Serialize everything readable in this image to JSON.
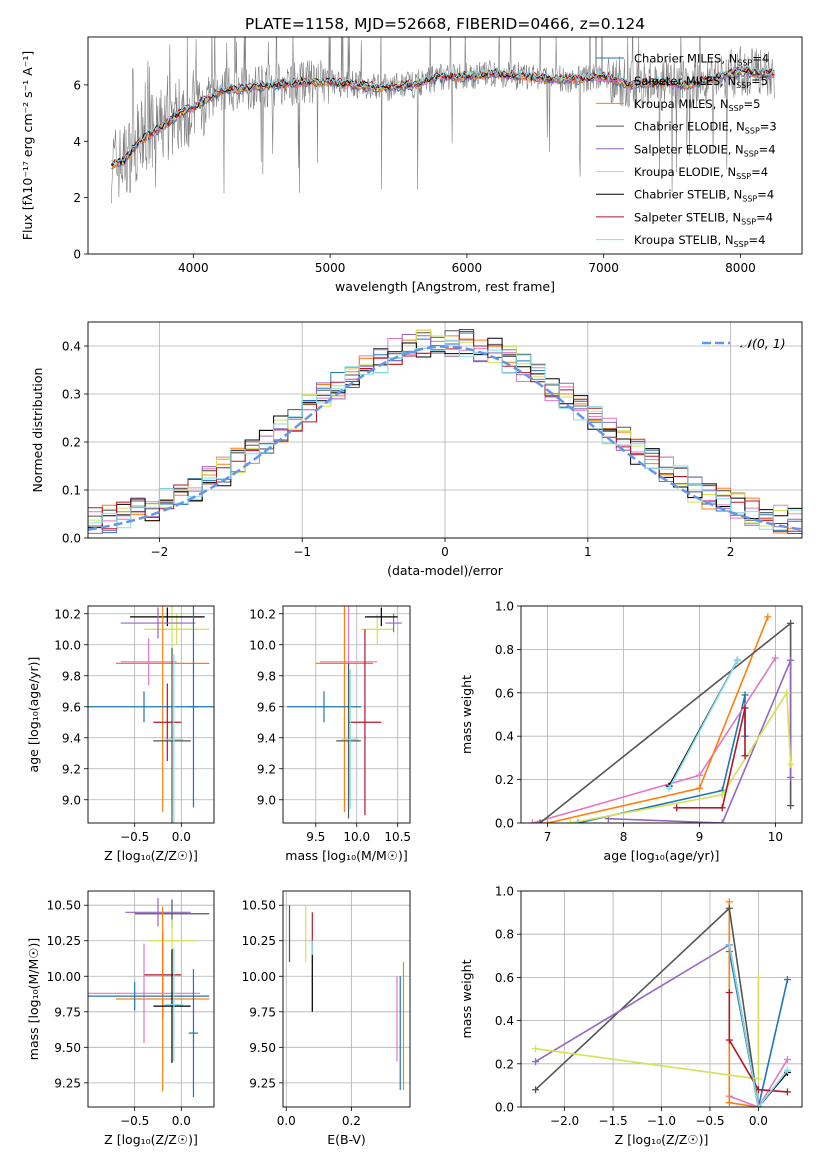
{
  "figure_title": "PLATE=1158, MJD=52668, FIBERID=0466, z=0.124",
  "colors": {
    "data": "#808080",
    "Chabrier MILES": "#1f77b4",
    "Salpeter MILES": "#e377c2",
    "Kroupa MILES": "#ff7f0e",
    "Chabrier ELODIE": "#555555",
    "Salpeter ELODIE": "#9467bd",
    "Kroupa ELODIE": "#d4e157",
    "Chabrier STELIB": "#000000",
    "Salpeter STELIB": "#b2182b",
    "Kroupa STELIB": "#80deea",
    "normal": "#6495ed"
  },
  "chart_data": [
    {
      "id": "spectrum",
      "type": "line",
      "xlabel": "wavelength [Angstrom, rest frame]",
      "ylabel": "Flux [fλ10⁻¹⁷ erg cm⁻² s⁻¹ A⁻¹]",
      "xlim": [
        3230,
        8450
      ],
      "ylim": [
        0,
        7.7
      ],
      "xticks": [
        4000,
        5000,
        6000,
        7000,
        8000
      ],
      "yticks": [
        0,
        2,
        4,
        6
      ],
      "grid": false,
      "legend_position": "right",
      "legend": [
        {
          "label": "Chabrier MILES, N",
          "sub": "SSP",
          "tail": "=4"
        },
        {
          "label": "Salpeter MILES, N",
          "sub": "SSP",
          "tail": "=5"
        },
        {
          "label": "Kroupa MILES, N",
          "sub": "SSP",
          "tail": "=5"
        },
        {
          "label": "Chabrier ELODIE, N",
          "sub": "SSP",
          "tail": "=3"
        },
        {
          "label": "Salpeter ELODIE, N",
          "sub": "SSP",
          "tail": "=4"
        },
        {
          "label": "Kroupa ELODIE, N",
          "sub": "SSP",
          "tail": "=4"
        },
        {
          "label": "Chabrier STELIB, N",
          "sub": "SSP",
          "tail": "=4"
        },
        {
          "label": "Salpeter STELIB, N",
          "sub": "SSP",
          "tail": "=4"
        },
        {
          "label": "Kroupa STELIB, N",
          "sub": "SSP",
          "tail": "=4"
        }
      ],
      "model_continuum": {
        "x": [
          3400,
          3500,
          3600,
          3700,
          3800,
          3900,
          4000,
          4100,
          4200,
          4400,
          4600,
          4800,
          5000,
          5200,
          5400,
          5600,
          5800,
          6000,
          6200,
          6400,
          6600,
          6800,
          7000,
          7200,
          7400,
          7600,
          7800,
          8000,
          8200
        ],
        "y": [
          3.2,
          3.3,
          4.0,
          4.3,
          4.6,
          5.0,
          5.2,
          5.5,
          5.8,
          5.9,
          6.0,
          6.1,
          6.1,
          6.0,
          5.9,
          6.0,
          6.3,
          6.3,
          6.4,
          6.3,
          6.2,
          6.2,
          6.3,
          6.0,
          6.1,
          6.0,
          6.2,
          6.5,
          6.4
        ]
      }
    },
    {
      "id": "residuals",
      "type": "histogram",
      "xlabel": "(data-model)/error",
      "ylabel": "Normed distribution",
      "xlim": [
        -2.5,
        2.5
      ],
      "ylim": [
        0,
        0.45
      ],
      "xticks": [
        -2,
        -1,
        0,
        1,
        2
      ],
      "yticks": [
        0.0,
        0.1,
        0.2,
        0.3,
        0.4
      ],
      "grid": true,
      "legend_position": "top-right",
      "legend": "𝒩(0, 1)",
      "bin_width": 0.1,
      "reference_curve": "standard normal density"
    },
    {
      "id": "age_vs_Z",
      "type": "scatter",
      "xlabel": "Z [log₁₀(Z/Z☉)]",
      "ylabel": "age  [log₁₀(age/yr)]",
      "xlim": [
        -1.0,
        0.35
      ],
      "ylim": [
        8.85,
        10.25
      ],
      "xticks": [
        -0.5,
        0.0
      ],
      "yticks": [
        9.0,
        9.2,
        9.4,
        9.6,
        9.8,
        10.0,
        10.2
      ],
      "grid": true,
      "points": [
        {
          "series": "Kroupa ELODIE",
          "x": -0.05,
          "y": 10.1,
          "xerr": 0.35,
          "yerr": 0.1
        },
        {
          "series": "Kroupa ELODIE",
          "x": -0.1,
          "y": 10.1,
          "xerr": 0.2,
          "yerr": 0.15
        },
        {
          "series": "Chabrier STELIB",
          "x": -0.15,
          "y": 10.18,
          "xerr": 0.4,
          "yerr": 0.06
        },
        {
          "series": "Salpeter ELODIE",
          "x": -0.25,
          "y": 10.14,
          "xerr": 0.4,
          "yerr": 0.1
        },
        {
          "series": "Kroupa MILES",
          "x": -0.2,
          "y": 9.88,
          "xerr": 0.5,
          "yerr": 0.96
        },
        {
          "series": "Salpeter MILES",
          "x": -0.35,
          "y": 9.89,
          "xerr": 0.3,
          "yerr": 0.15
        },
        {
          "series": "Chabrier MILES",
          "x": -0.4,
          "y": 9.6,
          "xerr": 0.8,
          "yerr": 0.1
        },
        {
          "series": "Chabrier MILES",
          "x": 0.13,
          "y": 9.6,
          "xerr": 0.05,
          "yerr": 0.65
        },
        {
          "series": "Salpeter STELIB",
          "x": -0.15,
          "y": 9.5,
          "xerr": 0.15,
          "yerr": 0.25
        },
        {
          "series": "Chabrier ELODIE",
          "x": -0.1,
          "y": 9.38,
          "xerr": 0.2,
          "yerr": 0.6
        },
        {
          "series": "Kroupa STELIB",
          "x": -0.08,
          "y": 9.39,
          "xerr": 0.1,
          "yerr": 0.55
        }
      ]
    },
    {
      "id": "age_vs_mass",
      "type": "scatter",
      "xlabel": "mass [log₁₀(M/M☉)]",
      "ylabel": "",
      "xlim": [
        9.1,
        10.65
      ],
      "ylim": [
        8.85,
        10.25
      ],
      "xticks": [
        9.5,
        10.0,
        10.5
      ],
      "yticks": [
        9.0,
        9.2,
        9.4,
        9.6,
        9.8,
        10.0,
        10.2
      ],
      "grid": true,
      "points": [
        {
          "series": "Kroupa ELODIE",
          "x": 10.25,
          "y": 10.1,
          "xerr": 0.2,
          "yerr": 0.1
        },
        {
          "series": "Salpeter ELODIE",
          "x": 10.45,
          "y": 10.14,
          "xerr": 0.1,
          "yerr": 0.06
        },
        {
          "series": "Chabrier STELIB",
          "x": 10.3,
          "y": 10.18,
          "xerr": 0.2,
          "yerr": 0.06
        },
        {
          "series": "Kroupa MILES",
          "x": 9.85,
          "y": 9.88,
          "xerr": 0.35,
          "yerr": 0.96
        },
        {
          "series": "Salpeter MILES",
          "x": 9.9,
          "y": 9.89,
          "xerr": 0.35,
          "yerr": 0.9
        },
        {
          "series": "Chabrier MILES",
          "x": 9.6,
          "y": 9.6,
          "xerr": 0.45,
          "yerr": 0.1
        },
        {
          "series": "Salpeter STELIB",
          "x": 10.1,
          "y": 9.5,
          "xerr": 0.2,
          "yerr": 0.6
        },
        {
          "series": "Chabrier ELODIE",
          "x": 9.9,
          "y": 9.38,
          "xerr": 0.15,
          "yerr": 0.5
        },
        {
          "series": "Kroupa STELIB",
          "x": 9.92,
          "y": 9.39,
          "xerr": 0.1,
          "yerr": 0.45
        }
      ]
    },
    {
      "id": "weight_vs_age",
      "type": "line",
      "xlabel": "age  [log₁₀(age/yr)]",
      "ylabel": "mass weight",
      "xlim": [
        6.65,
        10.35
      ],
      "ylim": [
        0,
        1.0
      ],
      "xticks": [
        7,
        8,
        9,
        10
      ],
      "yticks": [
        0.0,
        0.2,
        0.4,
        0.6,
        0.8,
        1.0
      ],
      "grid": true,
      "series": [
        {
          "key": "Chabrier MILES",
          "x": [
            7.4,
            9.3,
            9.6,
            9.6
          ],
          "y": [
            0.0,
            0.15,
            0.59,
            0.4
          ]
        },
        {
          "key": "Salpeter MILES",
          "x": [
            6.8,
            9.0,
            10.0
          ],
          "y": [
            0.0,
            0.22,
            0.76
          ]
        },
        {
          "key": "Kroupa MILES",
          "x": [
            7.0,
            9.0,
            9.9
          ],
          "y": [
            0.0,
            0.16,
            0.95
          ]
        },
        {
          "key": "Chabrier ELODIE",
          "x": [
            6.9,
            10.2,
            10.2
          ],
          "y": [
            0.0,
            0.92,
            0.08
          ]
        },
        {
          "key": "Salpeter ELODIE",
          "x": [
            7.8,
            9.3,
            10.2,
            10.2
          ],
          "y": [
            0.02,
            0.0,
            0.75,
            0.21
          ]
        },
        {
          "key": "Kroupa ELODIE",
          "x": [
            7.3,
            9.3,
            10.15,
            10.2
          ],
          "y": [
            0.0,
            0.13,
            0.6,
            0.27
          ]
        },
        {
          "key": "Chabrier STELIB",
          "x": [
            8.6,
            9.5
          ],
          "y": [
            0.17,
            0.75
          ]
        },
        {
          "key": "Salpeter STELIB",
          "x": [
            8.7,
            9.3,
            9.6,
            9.6
          ],
          "y": [
            0.07,
            0.07,
            0.53,
            0.31
          ]
        },
        {
          "key": "Kroupa STELIB",
          "x": [
            8.6,
            9.5
          ],
          "y": [
            0.16,
            0.75
          ]
        }
      ]
    },
    {
      "id": "mass_vs_Z",
      "type": "scatter",
      "xlabel": "Z [log₁₀(Z/Z☉)]",
      "ylabel": "mass [log₁₀(M/M☉)]",
      "xlim": [
        -1.0,
        0.35
      ],
      "ylim": [
        9.08,
        10.6
      ],
      "xticks": [
        -0.5,
        0.0
      ],
      "yticks": [
        9.25,
        9.5,
        9.75,
        10.0,
        10.25,
        10.5
      ],
      "grid": true,
      "points": [
        {
          "series": "Chabrier ELODIE",
          "x": -0.1,
          "y": 10.44,
          "xerr": 0.4,
          "yerr": 0.1
        },
        {
          "series": "Salpeter ELODIE",
          "x": -0.25,
          "y": 10.45,
          "xerr": 0.35,
          "yerr": 0.1
        },
        {
          "series": "Kroupa ELODIE",
          "x": -0.1,
          "y": 10.25,
          "xerr": 0.25,
          "yerr": 0.15
        },
        {
          "series": "Salpeter STELIB",
          "x": -0.2,
          "y": 10.01,
          "xerr": 0.2,
          "yerr": 0.3
        },
        {
          "series": "Kroupa MILES",
          "x": -0.2,
          "y": 9.84,
          "xerr": 0.5,
          "yerr": 0.65
        },
        {
          "series": "Salpeter MILES",
          "x": -0.4,
          "y": 9.88,
          "xerr": 0.6,
          "yerr": 0.35
        },
        {
          "series": "Chabrier MILES",
          "x": -0.5,
          "y": 9.86,
          "xerr": 0.8,
          "yerr": 0.1
        },
        {
          "series": "Chabrier MILES",
          "x": 0.13,
          "y": 9.6,
          "xerr": 0.05,
          "yerr": 0.45
        },
        {
          "series": "Chabrier STELIB",
          "x": -0.1,
          "y": 9.79,
          "xerr": 0.2,
          "yerr": 0.4
        },
        {
          "series": "Kroupa STELIB",
          "x": -0.08,
          "y": 9.8,
          "xerr": 0.1,
          "yerr": 0.4
        }
      ]
    },
    {
      "id": "mass_vs_ebv",
      "type": "scatter",
      "xlabel": "E(B-V)",
      "ylabel": "",
      "xlim": [
        -0.01,
        0.38
      ],
      "ylim": [
        9.08,
        10.6
      ],
      "xticks": [
        0.0,
        0.2
      ],
      "yticks": [
        9.25,
        9.5,
        9.75,
        10.0,
        10.25,
        10.5
      ],
      "grid": true,
      "points": [
        {
          "series": "Chabrier ELODIE",
          "x": 0.01,
          "y": 10.3,
          "yerr": 0.2
        },
        {
          "series": "Kroupa ELODIE",
          "x": 0.06,
          "y": 10.3,
          "yerr": 0.2
        },
        {
          "series": "Salpeter STELIB",
          "x": 0.08,
          "y": 10.3,
          "yerr": 0.15
        },
        {
          "series": "Kroupa STELIB",
          "x": 0.08,
          "y": 10.0,
          "yerr": 0.25
        },
        {
          "series": "Chabrier STELIB",
          "x": 0.08,
          "y": 9.95,
          "yerr": 0.2
        },
        {
          "series": "Salpeter MILES",
          "x": 0.34,
          "y": 9.7,
          "yerr": 0.3
        },
        {
          "series": "Chabrier MILES",
          "x": 0.35,
          "y": 9.6,
          "yerr": 0.4
        },
        {
          "series": "Kroupa MILES",
          "x": 0.36,
          "y": 9.65,
          "yerr": 0.45
        }
      ]
    },
    {
      "id": "weight_vs_Z",
      "type": "line",
      "xlabel": "Z [log₁₀(Z/Z☉)]",
      "ylabel": "mass weight",
      "xlim": [
        -2.45,
        0.45
      ],
      "ylim": [
        0,
        1.0
      ],
      "xticks": [
        -2.0,
        -1.5,
        -1.0,
        -0.5,
        0.0
      ],
      "yticks": [
        0.0,
        0.2,
        0.4,
        0.6,
        0.8,
        1.0
      ],
      "grid": true,
      "series": [
        {
          "key": "Chabrier MILES",
          "x": [
            -0.3,
            0.0,
            0.3
          ],
          "y": [
            0.72,
            0.0,
            0.59
          ]
        },
        {
          "key": "Salpeter MILES",
          "x": [
            -0.3,
            0.0,
            0.3
          ],
          "y": [
            0.05,
            0.0,
            0.22
          ]
        },
        {
          "key": "Kroupa MILES",
          "x": [
            -0.3,
            -0.3,
            0.0
          ],
          "y": [
            0.95,
            0.02,
            0.0
          ]
        },
        {
          "key": "Chabrier ELODIE",
          "x": [
            -2.3,
            -0.3,
            0.0
          ],
          "y": [
            0.08,
            0.92,
            0.0
          ]
        },
        {
          "key": "Salpeter ELODIE",
          "x": [
            -2.3,
            -0.3,
            0.0
          ],
          "y": [
            0.21,
            0.75,
            0.0
          ]
        },
        {
          "key": "Kroupa ELODIE",
          "x": [
            -2.3,
            0.0,
            0.0
          ],
          "y": [
            0.27,
            0.13,
            0.6
          ]
        },
        {
          "key": "Chabrier STELIB",
          "x": [
            -0.3,
            0.0,
            0.3
          ],
          "y": [
            0.75,
            0.0,
            0.16
          ]
        },
        {
          "key": "Salpeter STELIB",
          "x": [
            -0.3,
            -0.3,
            0.0,
            0.3
          ],
          "y": [
            0.53,
            0.31,
            0.08,
            0.07
          ]
        },
        {
          "key": "Kroupa STELIB",
          "x": [
            -0.3,
            0.0,
            0.3
          ],
          "y": [
            0.75,
            0.0,
            0.17
          ]
        }
      ]
    }
  ]
}
